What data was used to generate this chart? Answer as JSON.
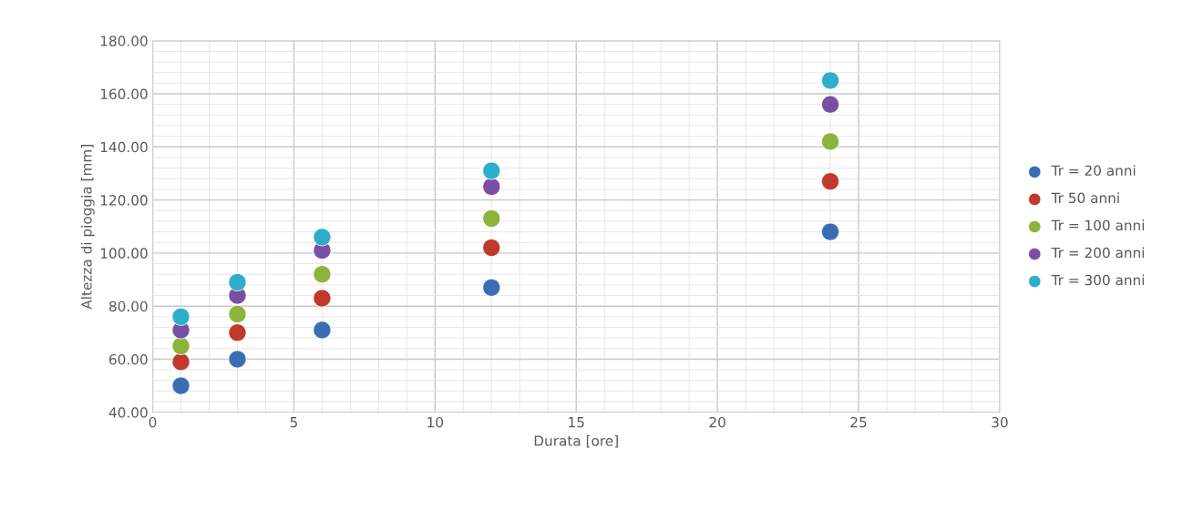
{
  "chart_data": {
    "type": "scatter",
    "xlabel": "Durata [ore]",
    "ylabel": "Altezza di pioggia [mm]",
    "x": [
      1,
      3,
      6,
      12,
      24
    ],
    "series": [
      {
        "name": "Tr = 20 anni",
        "color": "#3b6db5",
        "values": [
          50,
          60,
          71,
          87,
          108
        ]
      },
      {
        "name": "Tr 50 anni",
        "color": "#c0392b",
        "values": [
          59,
          70,
          83,
          102,
          127
        ]
      },
      {
        "name": "Tr = 100 anni",
        "color": "#8cb33a",
        "values": [
          65,
          77,
          92,
          113,
          142
        ]
      },
      {
        "name": "Tr = 200 anni",
        "color": "#7a4fa3",
        "values": [
          71,
          84,
          101,
          125,
          156
        ]
      },
      {
        "name": "Tr = 300 anni",
        "color": "#2eaecb",
        "values": [
          76,
          89,
          106,
          131,
          165
        ]
      }
    ],
    "xlim": [
      0,
      30
    ],
    "xticks": [
      0,
      5,
      10,
      15,
      20,
      25,
      30
    ],
    "ylim": [
      40,
      180
    ],
    "yticks": [
      {
        "value": 40,
        "label": "40.00"
      },
      {
        "value": 60,
        "label": "60.00"
      },
      {
        "value": 80,
        "label": "80.00"
      },
      {
        "value": 100,
        "label": "100.00"
      },
      {
        "value": 120,
        "label": "120.00"
      },
      {
        "value": 140,
        "label": "140.00"
      },
      {
        "value": 160,
        "label": "160.00"
      },
      {
        "value": 180,
        "label": "180.00"
      }
    ],
    "grid": true,
    "legend": "right",
    "marker": "circle"
  }
}
